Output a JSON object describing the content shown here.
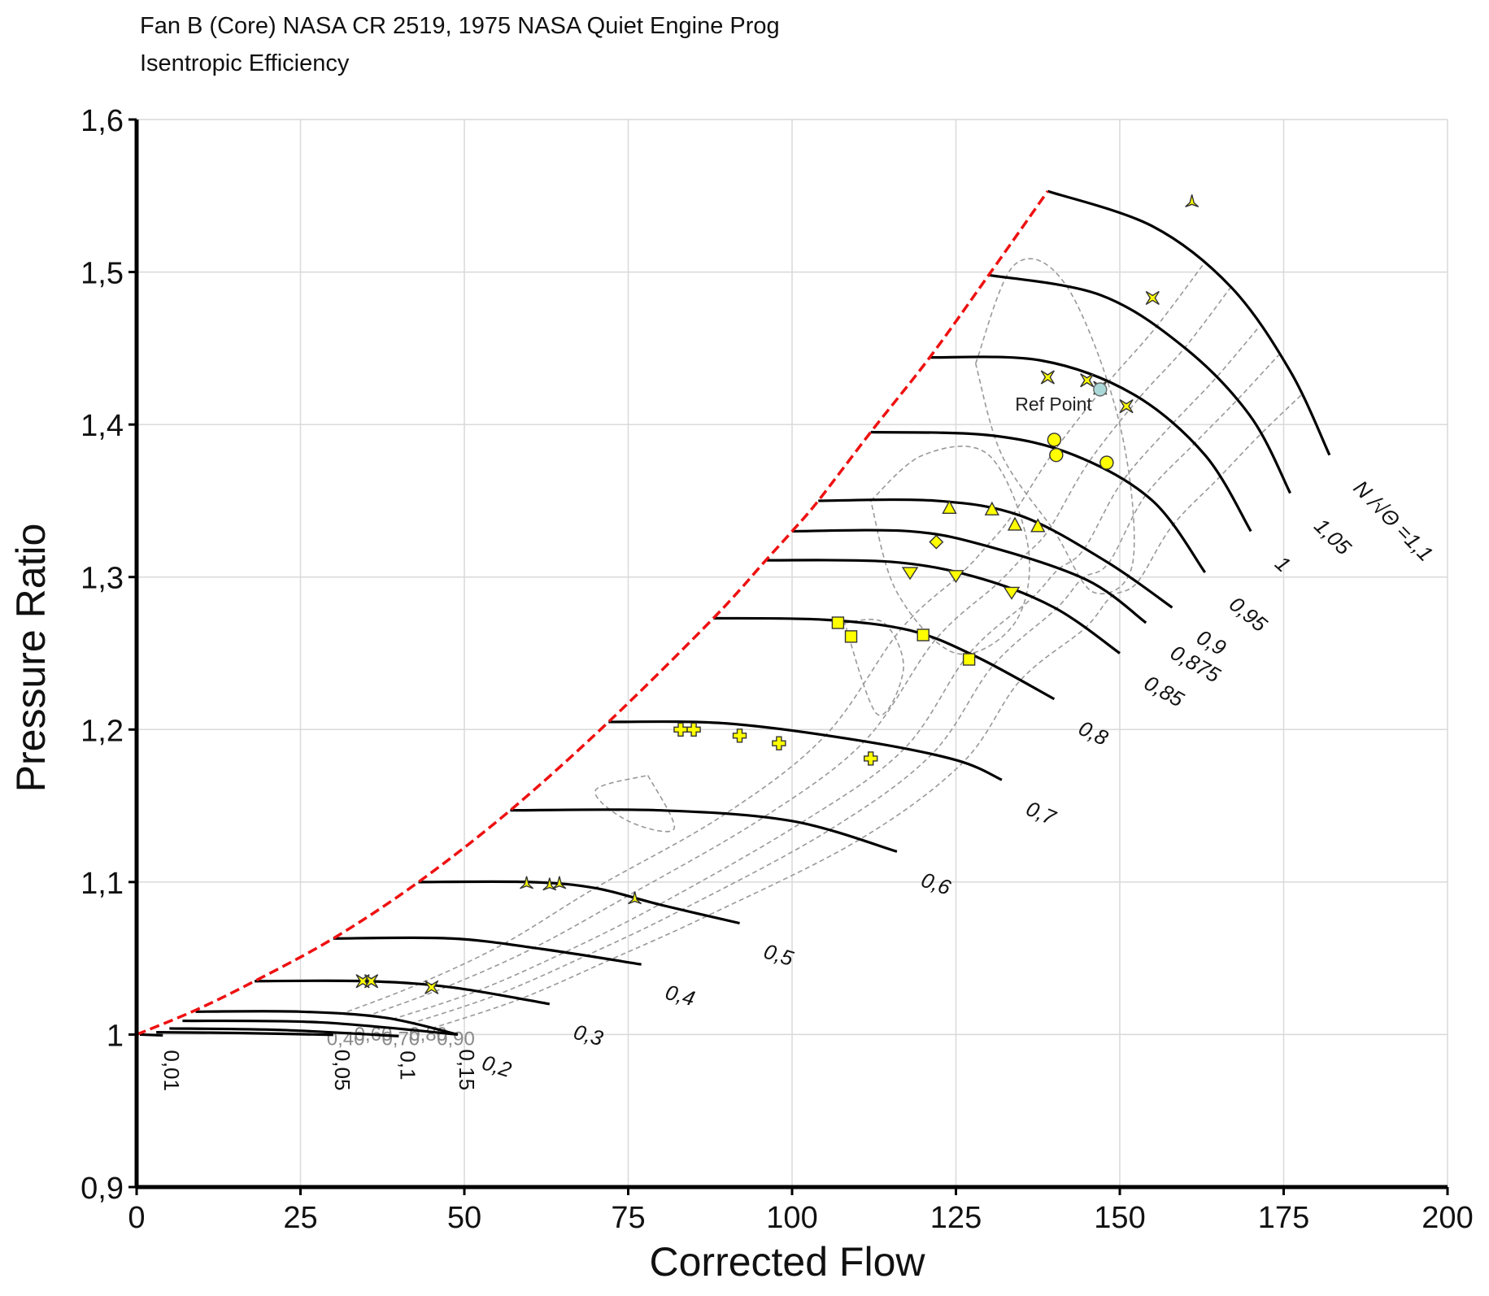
{
  "title": "Fan B (Core) NASA CR 2519, 1975 NASA Quiet Engine Prog",
  "subtitle": "Isentropic Efficiency",
  "chart_data": {
    "type": "line",
    "xlabel": "Corrected Flow",
    "ylabel": "Pressure Ratio",
    "xlim": [
      0,
      200
    ],
    "ylim": [
      0.9,
      1.6
    ],
    "x_ticks": [
      0,
      25,
      50,
      75,
      100,
      125,
      150,
      175,
      200
    ],
    "x_tick_labels": [
      "0",
      "25",
      "50",
      "75",
      "100",
      "125",
      "150",
      "175",
      "200"
    ],
    "y_ticks": [
      0.9,
      1.0,
      1.1,
      1.2,
      1.3,
      1.4,
      1.5,
      1.6
    ],
    "y_tick_labels": [
      "0,9",
      "1",
      "1,1",
      "1,2",
      "1,3",
      "1,4",
      "1,5",
      "1,6"
    ],
    "grid": true,
    "colors": {
      "speed_line": "#000000",
      "surge_line": "#ee1111",
      "efficiency_contour": "#999999",
      "marker_fill": "#ffff00",
      "ref_point": "#aad8d8"
    },
    "speed_lines": [
      {
        "label": "0,01",
        "points": [
          [
            0.5,
            1.0
          ],
          [
            4,
            0.9995
          ]
        ]
      },
      {
        "label": "0,05",
        "points": [
          [
            3,
            1.0015
          ],
          [
            16,
            1.001
          ],
          [
            30,
            0.9998
          ]
        ]
      },
      {
        "label": "0,1",
        "points": [
          [
            5,
            1.004
          ],
          [
            22,
            1.003
          ],
          [
            40,
            0.999
          ]
        ]
      },
      {
        "label": "0,15",
        "points": [
          [
            7,
            1.009
          ],
          [
            28,
            1.008
          ],
          [
            49,
            1.0
          ]
        ]
      },
      {
        "label": "0,2",
        "points": [
          [
            9,
            1.015
          ],
          [
            25,
            1.015
          ],
          [
            38,
            1.011
          ],
          [
            49,
            1.0
          ]
        ]
      },
      {
        "label": "0,3",
        "points": [
          [
            18,
            1.035
          ],
          [
            35,
            1.035
          ],
          [
            48,
            1.031
          ],
          [
            63,
            1.02
          ]
        ]
      },
      {
        "label": "0,4",
        "points": [
          [
            30,
            1.063
          ],
          [
            48,
            1.063
          ],
          [
            62,
            1.056
          ],
          [
            77,
            1.046
          ]
        ]
      },
      {
        "label": "0,5",
        "points": [
          [
            43,
            1.1
          ],
          [
            60,
            1.1
          ],
          [
            70,
            1.096
          ],
          [
            80,
            1.085
          ],
          [
            92,
            1.073
          ]
        ]
      },
      {
        "label": "0,6",
        "points": [
          [
            57,
            1.147
          ],
          [
            80,
            1.147
          ],
          [
            100,
            1.14
          ],
          [
            116,
            1.12
          ]
        ]
      },
      {
        "label": "0,7",
        "points": [
          [
            72,
            1.205
          ],
          [
            90,
            1.204
          ],
          [
            110,
            1.193
          ],
          [
            125,
            1.18
          ],
          [
            132,
            1.167
          ]
        ]
      },
      {
        "label": "0,8",
        "points": [
          [
            88,
            1.273
          ],
          [
            105,
            1.272
          ],
          [
            118,
            1.265
          ],
          [
            128,
            1.248
          ],
          [
            140,
            1.22
          ]
        ]
      },
      {
        "label": "0,85",
        "points": [
          [
            96,
            1.311
          ],
          [
            115,
            1.31
          ],
          [
            128,
            1.3
          ],
          [
            140,
            1.28
          ],
          [
            150,
            1.25
          ]
        ]
      },
      {
        "label": "0,875",
        "points": [
          [
            100,
            1.33
          ],
          [
            118,
            1.33
          ],
          [
            130,
            1.32
          ],
          [
            145,
            1.298
          ],
          [
            154,
            1.27
          ]
        ]
      },
      {
        "label": "0,9",
        "points": [
          [
            104,
            1.35
          ],
          [
            122,
            1.35
          ],
          [
            135,
            1.34
          ],
          [
            148,
            1.31
          ],
          [
            158,
            1.28
          ]
        ]
      },
      {
        "label": "0,95",
        "points": [
          [
            112,
            1.395
          ],
          [
            130,
            1.393
          ],
          [
            143,
            1.38
          ],
          [
            155,
            1.35
          ],
          [
            163,
            1.303
          ]
        ]
      },
      {
        "label": "1",
        "points": [
          [
            121,
            1.444
          ],
          [
            138,
            1.442
          ],
          [
            152,
            1.42
          ],
          [
            163,
            1.38
          ],
          [
            170,
            1.33
          ]
        ]
      },
      {
        "label": "1,05",
        "points": [
          [
            130,
            1.498
          ],
          [
            147,
            1.485
          ],
          [
            160,
            1.45
          ],
          [
            170,
            1.405
          ],
          [
            176,
            1.355
          ]
        ]
      },
      {
        "label": "N /√Θ =1,1",
        "points": [
          [
            139,
            1.553
          ],
          [
            155,
            1.53
          ],
          [
            167,
            1.49
          ],
          [
            176,
            1.435
          ],
          [
            182,
            1.38
          ]
        ]
      }
    ],
    "surge_line": [
      [
        0,
        1.0
      ],
      [
        9,
        1.016
      ],
      [
        18,
        1.035
      ],
      [
        30,
        1.063
      ],
      [
        43,
        1.1
      ],
      [
        57,
        1.147
      ],
      [
        72,
        1.205
      ],
      [
        88,
        1.273
      ],
      [
        96,
        1.311
      ],
      [
        100,
        1.33
      ],
      [
        104,
        1.35
      ],
      [
        112,
        1.395
      ],
      [
        121,
        1.444
      ],
      [
        130,
        1.498
      ],
      [
        139,
        1.553
      ]
    ],
    "efficiency_contour_labels": [
      "0,40",
      "0,60",
      "0,70",
      "0,80",
      "0,90"
    ],
    "measured_points": [
      {
        "speed": "0,3",
        "marker": "star4",
        "points": [
          [
            34.5,
            1.035
          ],
          [
            35.8,
            1.035
          ],
          [
            45,
            1.031
          ]
        ]
      },
      {
        "speed": "0,5",
        "marker": "tri-star",
        "points": [
          [
            59.5,
            1.099
          ],
          [
            63,
            1.098
          ],
          [
            64.5,
            1.099
          ],
          [
            76,
            1.089
          ]
        ]
      },
      {
        "speed": "0,7",
        "marker": "cross",
        "points": [
          [
            83,
            1.2
          ],
          [
            85,
            1.2
          ],
          [
            92,
            1.196
          ],
          [
            98,
            1.191
          ],
          [
            112,
            1.181
          ]
        ]
      },
      {
        "speed": "0,8",
        "marker": "square",
        "points": [
          [
            107,
            1.27
          ],
          [
            109,
            1.261
          ],
          [
            120,
            1.262
          ],
          [
            127,
            1.246
          ]
        ]
      },
      {
        "speed": "0,85",
        "marker": "triangle-down",
        "points": [
          [
            118,
            1.303
          ],
          [
            125,
            1.301
          ],
          [
            133.5,
            1.29
          ]
        ]
      },
      {
        "speed": "0,875",
        "marker": "diamond",
        "points": [
          [
            122,
            1.323
          ]
        ]
      },
      {
        "speed": "0,9",
        "marker": "triangle",
        "points": [
          [
            124,
            1.345
          ],
          [
            130.5,
            1.344
          ],
          [
            134,
            1.334
          ],
          [
            137.5,
            1.333
          ]
        ]
      },
      {
        "speed": "0,95",
        "marker": "circle",
        "points": [
          [
            140,
            1.39
          ],
          [
            140.3,
            1.38
          ],
          [
            148,
            1.375
          ]
        ]
      },
      {
        "speed": "1",
        "marker": "star4",
        "points": [
          [
            139,
            1.431
          ],
          [
            145,
            1.429
          ],
          [
            147,
            1.424
          ],
          [
            151,
            1.412
          ]
        ]
      },
      {
        "speed": "1,05",
        "marker": "star4",
        "points": [
          [
            155,
            1.483
          ]
        ]
      },
      {
        "speed": "1,1",
        "marker": "tri-star",
        "points": [
          [
            161,
            1.546
          ]
        ]
      }
    ],
    "ref_point": {
      "label": "Ref Point",
      "x": 147,
      "y": 1.423
    }
  }
}
